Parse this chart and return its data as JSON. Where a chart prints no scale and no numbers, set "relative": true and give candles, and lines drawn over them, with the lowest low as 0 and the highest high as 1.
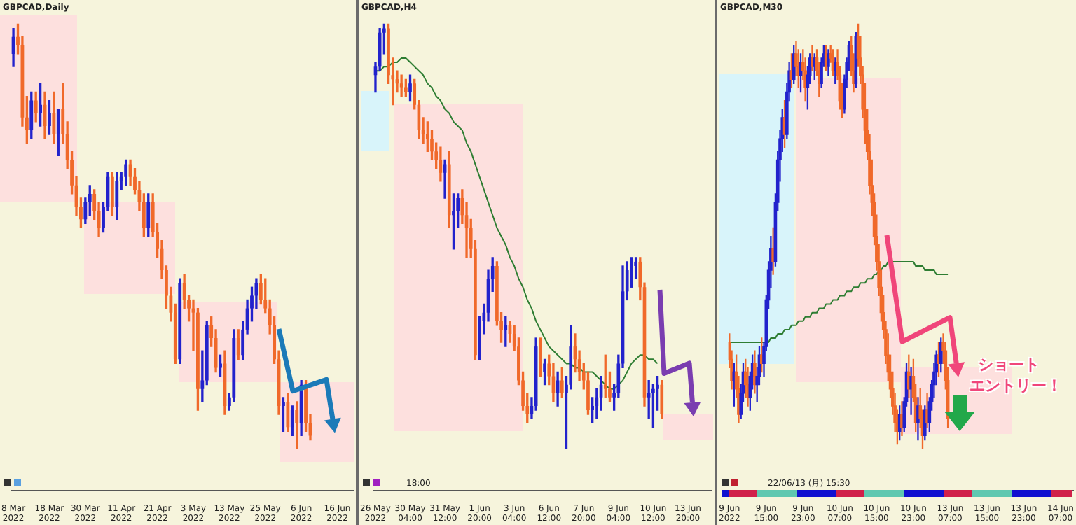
{
  "chart_data": [
    {
      "type": "candlestick",
      "title": "GBPCAD,Daily",
      "relative": true,
      "categories": [
        "8 Mar 2022",
        null,
        null,
        null,
        null,
        null,
        null,
        null,
        "18 Mar 2022",
        null,
        null,
        null,
        null,
        null,
        null,
        null,
        "30 Mar 2022",
        null,
        null,
        null,
        null,
        null,
        null,
        null,
        "11 Apr 2022",
        null,
        null,
        null,
        null,
        null,
        null,
        null,
        "21 Apr 2022",
        null,
        null,
        null,
        null,
        null,
        null,
        null,
        "3 May 2022",
        null,
        null,
        null,
        null,
        null,
        null,
        null,
        "13 May 2022",
        null,
        null,
        null,
        null,
        null,
        null,
        null,
        "25 May 2022",
        null,
        null,
        null,
        null,
        null,
        null,
        null,
        "6 Jun 2022",
        null,
        null,
        null,
        null,
        null,
        null,
        null,
        "16 Jun 2022",
        null,
        null,
        null
      ],
      "ohlc": [
        [
          0.93,
          0.99,
          0.9,
          0.97
        ],
        [
          0.97,
          1.0,
          0.93,
          0.95
        ],
        [
          0.95,
          0.97,
          0.76,
          0.78
        ],
        [
          0.78,
          0.83,
          0.72,
          0.75
        ],
        [
          0.75,
          0.84,
          0.73,
          0.82
        ],
        [
          0.82,
          0.84,
          0.77,
          0.79
        ],
        [
          0.79,
          0.86,
          0.76,
          0.81
        ],
        [
          0.81,
          0.84,
          0.73,
          0.76
        ],
        [
          0.76,
          0.82,
          0.74,
          0.79
        ],
        [
          0.79,
          0.84,
          0.72,
          0.74
        ],
        [
          0.74,
          0.8,
          0.69,
          0.8
        ],
        [
          0.8,
          0.86,
          0.72,
          0.74
        ],
        [
          0.74,
          0.77,
          0.66,
          0.68
        ],
        [
          0.68,
          0.7,
          0.6,
          0.62
        ],
        [
          0.62,
          0.64,
          0.55,
          0.57
        ],
        [
          0.57,
          0.59,
          0.52,
          0.54
        ],
        [
          0.54,
          0.59,
          0.53,
          0.58
        ],
        [
          0.58,
          0.62,
          0.55,
          0.6
        ],
        [
          0.6,
          0.61,
          0.54,
          0.56
        ],
        [
          0.56,
          0.58,
          0.5,
          0.52
        ],
        [
          0.52,
          0.58,
          0.51,
          0.57
        ],
        [
          0.57,
          0.65,
          0.56,
          0.64
        ],
        [
          0.64,
          0.65,
          0.55,
          0.57
        ],
        [
          0.57,
          0.65,
          0.54,
          0.63
        ],
        [
          0.63,
          0.65,
          0.61,
          0.64
        ],
        [
          0.64,
          0.68,
          0.62,
          0.67
        ],
        [
          0.67,
          0.68,
          0.62,
          0.64
        ],
        [
          0.64,
          0.66,
          0.6,
          0.61
        ],
        [
          0.61,
          0.63,
          0.56,
          0.58
        ],
        [
          0.58,
          0.6,
          0.5,
          0.52
        ],
        [
          0.52,
          0.6,
          0.5,
          0.58
        ],
        [
          0.58,
          0.6,
          0.5,
          0.51
        ],
        [
          0.51,
          0.53,
          0.45,
          0.47
        ],
        [
          0.47,
          0.49,
          0.4,
          0.42
        ],
        [
          0.42,
          0.43,
          0.33,
          0.36
        ],
        [
          0.36,
          0.38,
          0.3,
          0.32
        ],
        [
          0.32,
          0.34,
          0.2,
          0.21
        ],
        [
          0.21,
          0.4,
          0.2,
          0.39
        ],
        [
          0.39,
          0.41,
          0.33,
          0.35
        ],
        [
          0.35,
          0.36,
          0.3,
          0.33
        ],
        [
          0.33,
          0.35,
          0.23,
          0.32
        ],
        [
          0.32,
          0.33,
          0.09,
          0.14
        ],
        [
          0.14,
          0.23,
          0.11,
          0.16
        ],
        [
          0.16,
          0.3,
          0.15,
          0.29
        ],
        [
          0.29,
          0.31,
          0.24,
          0.26
        ],
        [
          0.26,
          0.28,
          0.18,
          0.19
        ],
        [
          0.19,
          0.22,
          0.17,
          0.2
        ],
        [
          0.2,
          0.23,
          0.08,
          0.1
        ],
        [
          0.1,
          0.13,
          0.09,
          0.12
        ],
        [
          0.12,
          0.28,
          0.11,
          0.26
        ],
        [
          0.26,
          0.28,
          0.21,
          0.22
        ],
        [
          0.22,
          0.3,
          0.21,
          0.28
        ],
        [
          0.28,
          0.35,
          0.27,
          0.33
        ],
        [
          0.33,
          0.38,
          0.3,
          0.36
        ],
        [
          0.36,
          0.4,
          0.33,
          0.39
        ],
        [
          0.39,
          0.41,
          0.34,
          0.35
        ],
        [
          0.35,
          0.4,
          0.32,
          0.33
        ],
        [
          0.33,
          0.35,
          0.27,
          0.29
        ],
        [
          0.29,
          0.31,
          0.2,
          0.21
        ],
        [
          0.21,
          0.23,
          0.08,
          0.1
        ],
        [
          0.1,
          0.12,
          0.04,
          0.11
        ],
        [
          0.11,
          0.13,
          0.04,
          0.05
        ],
        [
          0.05,
          0.1,
          0.03,
          0.09
        ],
        [
          0.09,
          0.11,
          0.0,
          0.06
        ],
        [
          0.06,
          0.16,
          0.03,
          0.15
        ],
        [
          0.15,
          0.16,
          0.04,
          0.06
        ],
        [
          0.06,
          0.08,
          0.02,
          0.03
        ],
        null,
        null,
        null,
        null,
        null,
        null,
        null,
        null,
        null
      ],
      "colors": [
        "#2222cc",
        "#f0692a",
        "#f0692a",
        "#f0692a",
        "#2222cc",
        "#f0692a",
        "#2222cc",
        "#f0692a",
        "#2222cc",
        "#f0692a",
        "#2222cc",
        "#f0692a",
        "#f0692a",
        "#f0692a",
        "#f0692a",
        "#f0692a",
        "#2222cc",
        "#2222cc",
        "#f0692a",
        "#f0692a",
        "#2222cc",
        "#2222cc",
        "#f0692a",
        "#2222cc",
        "#2222cc",
        "#2222cc",
        "#f0692a",
        "#f0692a",
        "#f0692a",
        "#f0692a",
        "#2222cc",
        "#f0692a",
        "#f0692a",
        "#f0692a",
        "#f0692a",
        "#f0692a",
        "#f0692a",
        "#2222cc",
        "#f0692a",
        "#f0692a",
        "#f0692a",
        "#f0692a",
        "#2222cc",
        "#2222cc",
        "#f0692a",
        "#f0692a",
        "#2222cc",
        "#f0692a",
        "#2222cc",
        "#2222cc",
        "#f0692a",
        "#2222cc",
        "#2222cc",
        "#2222cc",
        "#2222cc",
        "#f0692a",
        "#f0692a",
        "#f0692a",
        "#f0692a",
        "#f0692a",
        "#2222cc",
        "#f0692a",
        "#2222cc",
        "#f0692a",
        "#2222cc",
        "#f0692a",
        "#f0692a",
        null,
        null,
        null,
        null,
        null,
        null,
        null,
        null,
        null
      ]
    },
    {
      "type": "candlestick",
      "title": "GBPCAD,H4",
      "relative": true,
      "categories": [
        "26 May 2022",
        null,
        null,
        null,
        null,
        null,
        null,
        null,
        "30 May 04:00",
        null,
        null,
        null,
        null,
        null,
        null,
        null,
        "31 May 12:00",
        null,
        null,
        null,
        null,
        null,
        null,
        null,
        "1 Jun 20:00",
        null,
        null,
        null,
        null,
        null,
        null,
        null,
        "3 Jun 04:00",
        null,
        null,
        null,
        null,
        null,
        null,
        null,
        "6 Jun 12:00",
        null,
        null,
        null,
        null,
        null,
        null,
        null,
        "7 Jun 20:00",
        null,
        null,
        null,
        null,
        null,
        null,
        null,
        "9 Jun 04:00",
        null,
        null,
        null,
        null,
        null,
        null,
        null,
        "10 Jun 12:00",
        null,
        null,
        null,
        null,
        null,
        null,
        null,
        "13 Jun 20:00",
        null,
        null,
        null,
        null,
        null
      ],
      "ohlc": [
        [
          0.88,
          0.91,
          0.84,
          0.9
        ],
        [
          0.9,
          0.99,
          0.89,
          0.98
        ],
        [
          0.98,
          1.0,
          0.93,
          0.99
        ],
        [
          0.99,
          1.0,
          0.86,
          0.88
        ],
        [
          0.88,
          0.92,
          0.81,
          0.87
        ],
        [
          0.87,
          0.89,
          0.84,
          0.86
        ],
        [
          0.86,
          0.88,
          0.83,
          0.85
        ],
        [
          0.85,
          0.87,
          0.83,
          0.84
        ],
        [
          0.84,
          0.88,
          0.82,
          0.86
        ],
        [
          0.86,
          0.87,
          0.8,
          0.81
        ],
        [
          0.81,
          0.82,
          0.73,
          0.75
        ],
        [
          0.75,
          0.78,
          0.72,
          0.74
        ],
        [
          0.74,
          0.77,
          0.7,
          0.73
        ],
        [
          0.73,
          0.75,
          0.68,
          0.7
        ],
        [
          0.7,
          0.72,
          0.66,
          0.68
        ],
        [
          0.68,
          0.71,
          0.63,
          0.65
        ],
        [
          0.65,
          0.68,
          0.59,
          0.67
        ],
        [
          0.67,
          0.7,
          0.52,
          0.55
        ],
        [
          0.55,
          0.6,
          0.47,
          0.56
        ],
        [
          0.56,
          0.6,
          0.52,
          0.59
        ],
        [
          0.59,
          0.61,
          0.53,
          0.55
        ],
        [
          0.55,
          0.58,
          0.45,
          0.52
        ],
        [
          0.52,
          0.54,
          0.45,
          0.47
        ],
        [
          0.47,
          0.49,
          0.21,
          0.22
        ],
        [
          0.22,
          0.31,
          0.21,
          0.3
        ],
        [
          0.3,
          0.34,
          0.27,
          0.32
        ],
        [
          0.32,
          0.42,
          0.3,
          0.4
        ],
        [
          0.4,
          0.45,
          0.37,
          0.43
        ],
        [
          0.43,
          0.44,
          0.29,
          0.3
        ],
        [
          0.3,
          0.32,
          0.25,
          0.28
        ],
        [
          0.28,
          0.31,
          0.24,
          0.29
        ],
        [
          0.29,
          0.3,
          0.25,
          0.27
        ],
        [
          0.27,
          0.29,
          0.23,
          0.24
        ],
        [
          0.24,
          0.26,
          0.15,
          0.16
        ],
        [
          0.16,
          0.18,
          0.09,
          0.1
        ],
        [
          0.1,
          0.13,
          0.06,
          0.08
        ],
        [
          0.08,
          0.12,
          0.07,
          0.1
        ],
        [
          0.1,
          0.26,
          0.09,
          0.24
        ],
        [
          0.24,
          0.26,
          0.17,
          0.18
        ],
        [
          0.18,
          0.21,
          0.15,
          0.2
        ],
        [
          0.2,
          0.22,
          0.15,
          0.17
        ],
        [
          0.17,
          0.2,
          0.11,
          0.13
        ],
        [
          0.13,
          0.18,
          0.1,
          0.16
        ],
        [
          0.16,
          0.19,
          0.12,
          0.13
        ],
        [
          0.13,
          0.17,
          0.0,
          0.15
        ],
        [
          0.15,
          0.29,
          0.14,
          0.24
        ],
        [
          0.24,
          0.27,
          0.18,
          0.21
        ],
        [
          0.21,
          0.23,
          0.16,
          0.18
        ],
        [
          0.18,
          0.2,
          0.14,
          0.16
        ],
        [
          0.16,
          0.18,
          0.08,
          0.09
        ],
        [
          0.09,
          0.12,
          0.06,
          0.1
        ],
        [
          0.1,
          0.14,
          0.07,
          0.12
        ],
        [
          0.12,
          0.17,
          0.09,
          0.15
        ],
        [
          0.15,
          0.22,
          0.12,
          0.14
        ],
        [
          0.14,
          0.18,
          0.11,
          0.12
        ],
        [
          0.12,
          0.15,
          0.09,
          0.13
        ],
        [
          0.13,
          0.22,
          0.12,
          0.2
        ],
        [
          0.2,
          0.43,
          0.19,
          0.37
        ],
        [
          0.37,
          0.44,
          0.35,
          0.42
        ],
        [
          0.42,
          0.45,
          0.38,
          0.43
        ],
        [
          0.43,
          0.45,
          0.4,
          0.44
        ],
        [
          0.44,
          0.45,
          0.35,
          0.38
        ],
        [
          0.38,
          0.39,
          0.1,
          0.12
        ],
        [
          0.12,
          0.16,
          0.07,
          0.13
        ],
        [
          0.13,
          0.15,
          0.05,
          0.14
        ],
        [
          0.14,
          0.17,
          0.09,
          0.15
        ],
        [
          0.15,
          0.16,
          0.07,
          0.08
        ],
        null,
        null,
        null,
        null,
        null,
        null,
        null,
        null,
        null,
        null,
        null
      ],
      "colors": [
        "#2222cc",
        "#2222cc",
        "#2222cc",
        "#f0692a",
        "#f0692a",
        "#f0692a",
        "#f0692a",
        "#f0692a",
        "#2222cc",
        "#f0692a",
        "#f0692a",
        "#f0692a",
        "#f0692a",
        "#f0692a",
        "#f0692a",
        "#f0692a",
        "#2222cc",
        "#f0692a",
        "#2222cc",
        "#2222cc",
        "#f0692a",
        "#f0692a",
        "#f0692a",
        "#f0692a",
        "#2222cc",
        "#2222cc",
        "#2222cc",
        "#2222cc",
        "#f0692a",
        "#f0692a",
        "#2222cc",
        "#f0692a",
        "#f0692a",
        "#f0692a",
        "#f0692a",
        "#f0692a",
        "#2222cc",
        "#2222cc",
        "#f0692a",
        "#2222cc",
        "#f0692a",
        "#f0692a",
        "#2222cc",
        "#f0692a",
        "#2222cc",
        "#2222cc",
        "#f0692a",
        "#f0692a",
        "#f0692a",
        "#f0692a",
        "#2222cc",
        "#2222cc",
        "#2222cc",
        "#f0692a",
        "#f0692a",
        "#2222cc",
        "#2222cc",
        "#2222cc",
        "#2222cc",
        "#2222cc",
        "#2222cc",
        "#f0692a",
        "#f0692a",
        "#2222cc",
        "#2222cc",
        "#2222cc",
        "#f0692a",
        null,
        null,
        null,
        null,
        null,
        null,
        null,
        null,
        null,
        null,
        null
      ],
      "series": [
        {
          "type": "line",
          "color": "#2e7d32",
          "values": [
            0.89,
            0.89,
            0.9,
            0.9,
            0.91,
            0.91,
            0.92,
            0.92,
            0.91,
            0.9,
            0.89,
            0.88,
            0.86,
            0.85,
            0.83,
            0.82,
            0.8,
            0.79,
            0.77,
            0.76,
            0.75,
            0.72,
            0.7,
            0.67,
            0.64,
            0.61,
            0.58,
            0.55,
            0.52,
            0.5,
            0.48,
            0.45,
            0.43,
            0.4,
            0.38,
            0.35,
            0.33,
            0.3,
            0.28,
            0.26,
            0.24,
            0.23,
            0.22,
            0.21,
            0.2,
            0.2,
            0.19,
            0.19,
            0.18,
            0.18,
            0.18,
            0.17,
            0.16,
            0.15,
            0.14,
            0.14,
            0.15,
            0.16,
            0.18,
            0.2,
            0.21,
            0.22,
            0.22,
            0.21,
            0.21,
            0.2,
            null,
            null,
            null,
            null,
            null,
            null,
            null,
            null,
            null,
            null,
            null,
            null
          ]
        }
      ],
      "annotations": [
        "18:00"
      ]
    },
    {
      "type": "candlestick",
      "title": "GBPCAD,M30",
      "relative": true,
      "categories": [
        "9 Jun 2022",
        null,
        null,
        null,
        null,
        null,
        null,
        null,
        null,
        null,
        null,
        null,
        null,
        null,
        null,
        null,
        "9 Jun 15:00",
        null,
        null,
        null,
        null,
        null,
        null,
        null,
        null,
        null,
        null,
        null,
        null,
        null,
        null,
        null,
        "9 Jun 23:00",
        null,
        null,
        null,
        null,
        null,
        null,
        null,
        null,
        null,
        null,
        null,
        null,
        null,
        null,
        null,
        "10 Jun 07:00",
        null,
        null,
        null,
        null,
        null,
        null,
        null,
        null,
        null,
        null,
        null,
        null,
        null,
        null,
        null,
        "10 Jun 15:00",
        null,
        null,
        null,
        null,
        null,
        null,
        null,
        null,
        null,
        null,
        null,
        null,
        null,
        null,
        null,
        "10 Jun 23:00",
        null,
        null,
        null,
        null,
        null,
        null,
        null,
        null,
        null,
        null,
        null,
        null,
        null,
        null,
        null,
        "13 Jun 07:00",
        null,
        null,
        null,
        null,
        null,
        null,
        null,
        null,
        null,
        null,
        null,
        null,
        null,
        null,
        null,
        "13 Jun 15:00",
        null,
        null,
        null,
        null,
        null,
        null,
        null,
        null,
        null,
        null,
        null,
        null,
        null,
        null,
        null,
        "13 Jun 23:00",
        null,
        null,
        null,
        null,
        null,
        null,
        null,
        null,
        null,
        null,
        null,
        null,
        null,
        null,
        null,
        "14 Jun 07:00",
        null,
        null,
        null,
        null,
        null
      ],
      "ohlc": [
        [
          0.25,
          0.27,
          0.19,
          0.21
        ],
        [
          0.21,
          0.23,
          0.14,
          0.16
        ],
        [
          0.16,
          0.2,
          0.1,
          0.18
        ],
        [
          0.18,
          0.22,
          0.12,
          0.14
        ],
        [
          0.14,
          0.17,
          0.06,
          0.08
        ],
        [
          0.08,
          0.15,
          0.07,
          0.13
        ],
        [
          0.13,
          0.2,
          0.11,
          0.18
        ],
        [
          0.18,
          0.21,
          0.12,
          0.15
        ],
        [
          0.15,
          0.19,
          0.1,
          0.12
        ],
        [
          0.12,
          0.18,
          0.09,
          0.17
        ],
        [
          0.17,
          0.22,
          0.14,
          0.2
        ],
        [
          0.2,
          0.23,
          0.13,
          0.15
        ],
        [
          0.15,
          0.19,
          0.11,
          0.17
        ],
        [
          0.17,
          0.24,
          0.15,
          0.22
        ],
        [
          0.22,
          0.26,
          0.18,
          0.2
        ],
        [
          0.2,
          0.25,
          0.17,
          0.24
        ],
        [
          0.24,
          0.36,
          0.23,
          0.35
        ],
        [
          0.35,
          0.44,
          0.33,
          0.42
        ],
        [
          0.42,
          0.5,
          0.38,
          0.47
        ],
        [
          0.47,
          0.52,
          0.41,
          0.44
        ],
        [
          0.44,
          0.6,
          0.43,
          0.58
        ],
        [
          0.58,
          0.7,
          0.56,
          0.68
        ],
        [
          0.68,
          0.75,
          0.63,
          0.73
        ],
        [
          0.73,
          0.8,
          0.7,
          0.78
        ],
        [
          0.78,
          0.82,
          0.71,
          0.74
        ],
        [
          0.74,
          0.86,
          0.73,
          0.84
        ],
        [
          0.84,
          0.91,
          0.82,
          0.89
        ],
        [
          0.89,
          0.93,
          0.85,
          0.87
        ],
        [
          0.87,
          0.95,
          0.86,
          0.93
        ],
        [
          0.93,
          0.96,
          0.88,
          0.9
        ],
        [
          0.9,
          0.94,
          0.85,
          0.88
        ],
        [
          0.88,
          0.93,
          0.84,
          0.91
        ],
        [
          0.91,
          0.94,
          0.87,
          0.89
        ],
        [
          0.89,
          0.92,
          0.82,
          0.85
        ],
        [
          0.85,
          0.9,
          0.8,
          0.88
        ],
        [
          0.88,
          0.93,
          0.86,
          0.92
        ],
        [
          0.92,
          0.95,
          0.89,
          0.9
        ],
        [
          0.9,
          0.93,
          0.87,
          0.92
        ],
        [
          0.92,
          0.94,
          0.88,
          0.89
        ],
        [
          0.89,
          0.91,
          0.83,
          0.86
        ],
        [
          0.86,
          0.92,
          0.85,
          0.91
        ],
        [
          0.91,
          0.95,
          0.9,
          0.93
        ],
        [
          0.93,
          0.95,
          0.89,
          0.9
        ],
        [
          0.9,
          0.94,
          0.88,
          0.93
        ],
        [
          0.93,
          0.95,
          0.91,
          0.92
        ],
        [
          0.92,
          0.94,
          0.88,
          0.89
        ],
        [
          0.89,
          0.92,
          0.86,
          0.91
        ],
        [
          0.91,
          0.94,
          0.87,
          0.88
        ],
        [
          0.88,
          0.9,
          0.8,
          0.82
        ],
        [
          0.82,
          0.86,
          0.78,
          0.8
        ],
        [
          0.8,
          0.88,
          0.79,
          0.87
        ],
        [
          0.87,
          0.92,
          0.85,
          0.91
        ],
        [
          0.91,
          0.96,
          0.89,
          0.95
        ],
        [
          0.95,
          0.97,
          0.88,
          0.89
        ],
        [
          0.89,
          0.93,
          0.84,
          0.86
        ],
        [
          0.86,
          0.98,
          0.85,
          0.97
        ],
        [
          0.97,
          1.0,
          0.9,
          0.92
        ],
        [
          0.92,
          0.97,
          0.86,
          0.88
        ],
        [
          0.88,
          0.9,
          0.78,
          0.8
        ],
        [
          0.8,
          0.86,
          0.72,
          0.75
        ],
        [
          0.75,
          0.8,
          0.68,
          0.7
        ],
        [
          0.7,
          0.74,
          0.6,
          0.62
        ],
        [
          0.62,
          0.68,
          0.55,
          0.58
        ],
        [
          0.58,
          0.6,
          0.48,
          0.5
        ],
        [
          0.5,
          0.55,
          0.42,
          0.44
        ],
        [
          0.44,
          0.48,
          0.36,
          0.38
        ],
        [
          0.38,
          0.42,
          0.3,
          0.32
        ],
        [
          0.32,
          0.36,
          0.26,
          0.28
        ],
        [
          0.28,
          0.3,
          0.2,
          0.22
        ],
        [
          0.22,
          0.27,
          0.16,
          0.18
        ],
        [
          0.18,
          0.22,
          0.12,
          0.14
        ],
        [
          0.14,
          0.18,
          0.08,
          0.1
        ],
        [
          0.1,
          0.13,
          0.04,
          0.06
        ],
        [
          0.06,
          0.09,
          0.01,
          0.04
        ],
        [
          0.04,
          0.1,
          0.02,
          0.08
        ],
        [
          0.08,
          0.11,
          0.03,
          0.05
        ],
        [
          0.05,
          0.12,
          0.04,
          0.11
        ],
        [
          0.11,
          0.2,
          0.1,
          0.18
        ],
        [
          0.18,
          0.22,
          0.12,
          0.14
        ],
        [
          0.14,
          0.19,
          0.08,
          0.17
        ],
        [
          0.17,
          0.21,
          0.11,
          0.12
        ],
        [
          0.12,
          0.15,
          0.04,
          0.06
        ],
        [
          0.06,
          0.12,
          0.02,
          0.1
        ],
        [
          0.1,
          0.14,
          0.05,
          0.07
        ],
        [
          0.07,
          0.09,
          0.0,
          0.03
        ],
        [
          0.03,
          0.1,
          0.02,
          0.09
        ],
        [
          0.09,
          0.13,
          0.05,
          0.06
        ],
        [
          0.06,
          0.12,
          0.04,
          0.11
        ],
        [
          0.11,
          0.16,
          0.09,
          0.15
        ],
        [
          0.15,
          0.2,
          0.12,
          0.18
        ],
        [
          0.18,
          0.23,
          0.15,
          0.22
        ],
        [
          0.22,
          0.25,
          0.17,
          0.2
        ],
        [
          0.2,
          0.26,
          0.18,
          0.25
        ],
        [
          0.25,
          0.27,
          0.2,
          0.23
        ],
        [
          0.23,
          0.25,
          0.14,
          0.16
        ],
        [
          0.16,
          0.19,
          0.05,
          0.07
        ],
        null,
        null,
        null,
        null,
        null,
        null,
        null,
        null,
        null,
        null,
        null,
        null,
        null,
        null,
        null,
        null,
        null,
        null,
        null,
        null,
        null,
        null,
        null,
        null,
        null,
        null,
        null,
        null,
        null,
        null,
        null,
        null,
        null,
        null,
        null,
        null,
        null,
        null,
        null,
        null,
        null,
        null,
        null,
        null,
        null,
        null,
        null,
        null,
        null,
        null,
        null,
        null,
        null,
        null
      ],
      "colors": [
        "#f0692a",
        "#f0692a",
        "#2222cc",
        "#f0692a",
        "#f0692a",
        "#2222cc",
        "#2222cc",
        "#f0692a",
        "#f0692a",
        "#2222cc",
        "#2222cc",
        "#f0692a",
        "#2222cc",
        "#2222cc",
        "#f0692a",
        "#2222cc",
        "#2222cc",
        "#2222cc",
        "#2222cc",
        "#f0692a",
        "#2222cc",
        "#2222cc",
        "#2222cc",
        "#2222cc",
        "#f0692a",
        "#2222cc",
        "#2222cc",
        "#f0692a",
        "#2222cc",
        "#f0692a",
        "#f0692a",
        "#2222cc",
        "#f0692a",
        "#f0692a",
        "#2222cc",
        "#2222cc",
        "#f0692a",
        "#2222cc",
        "#f0692a",
        "#f0692a",
        "#2222cc",
        "#2222cc",
        "#f0692a",
        "#2222cc",
        "#f0692a",
        "#f0692a",
        "#2222cc",
        "#f0692a",
        "#f0692a",
        "#f0692a",
        "#2222cc",
        "#2222cc",
        "#2222cc",
        "#f0692a",
        "#f0692a",
        "#2222cc",
        "#f0692a",
        "#f0692a",
        "#f0692a",
        "#f0692a",
        "#f0692a",
        "#f0692a",
        "#f0692a",
        "#f0692a",
        "#f0692a",
        "#f0692a",
        "#f0692a",
        "#f0692a",
        "#f0692a",
        "#f0692a",
        "#f0692a",
        "#f0692a",
        "#f0692a",
        "#f0692a",
        "#2222cc",
        "#f0692a",
        "#2222cc",
        "#2222cc",
        "#f0692a",
        "#2222cc",
        "#f0692a",
        "#f0692a",
        "#2222cc",
        "#f0692a",
        "#f0692a",
        "#2222cc",
        "#f0692a",
        "#2222cc",
        "#2222cc",
        "#2222cc",
        "#2222cc",
        "#f0692a",
        "#2222cc",
        "#f0692a",
        "#f0692a",
        "#f0692a",
        null,
        null,
        null,
        null,
        null,
        null,
        null,
        null,
        null,
        null,
        null,
        null,
        null,
        null,
        null,
        null,
        null,
        null,
        null,
        null,
        null,
        null,
        null,
        null,
        null,
        null,
        null,
        null,
        null,
        null,
        null,
        null,
        null,
        null,
        null,
        null,
        null,
        null,
        null,
        null,
        null,
        null,
        null,
        null,
        null,
        null,
        null,
        null,
        null,
        null,
        null,
        null,
        null,
        null
      ],
      "series": [
        {
          "type": "line",
          "color": "#2e7d32",
          "values": [
            0.25,
            0.25,
            0.25,
            0.25,
            0.25,
            0.25,
            0.25,
            0.25,
            0.25,
            0.25,
            0.25,
            0.25,
            0.25,
            0.25,
            0.25,
            0.25,
            0.25,
            0.25,
            0.26,
            0.26,
            0.26,
            0.27,
            0.27,
            0.27,
            0.28,
            0.28,
            0.28,
            0.29,
            0.29,
            0.29,
            0.3,
            0.3,
            0.3,
            0.31,
            0.31,
            0.31,
            0.32,
            0.32,
            0.32,
            0.33,
            0.33,
            0.33,
            0.34,
            0.34,
            0.34,
            0.35,
            0.35,
            0.35,
            0.36,
            0.36,
            0.36,
            0.37,
            0.37,
            0.37,
            0.38,
            0.38,
            0.38,
            0.39,
            0.39,
            0.39,
            0.4,
            0.4,
            0.4,
            0.41,
            0.41,
            0.42,
            0.42,
            0.43,
            0.43,
            0.44,
            0.44,
            0.44,
            0.44,
            0.44,
            0.44,
            0.44,
            0.44,
            0.44,
            0.44,
            0.44,
            0.44,
            0.43,
            0.43,
            0.43,
            0.43,
            0.42,
            0.42,
            0.42,
            0.42,
            0.42,
            0.41,
            0.41,
            0.41,
            0.41,
            0.41,
            0.41,
            null,
            null,
            null,
            null,
            null,
            null,
            null,
            null,
            null,
            null,
            null,
            null,
            null,
            null,
            null,
            null,
            null,
            null,
            null,
            null,
            null,
            null,
            null,
            null,
            null,
            null,
            null,
            null,
            null,
            null,
            null,
            null,
            null,
            null,
            null,
            null,
            null,
            null,
            null,
            null,
            null,
            null,
            null,
            null,
            null,
            null,
            null,
            null,
            null,
            null,
            null,
            null,
            null,
            null
          ]
        }
      ],
      "annotations": [
        "22/06/13 (月) 15:30",
        "ショート",
        "エントリー！"
      ]
    }
  ]
}
